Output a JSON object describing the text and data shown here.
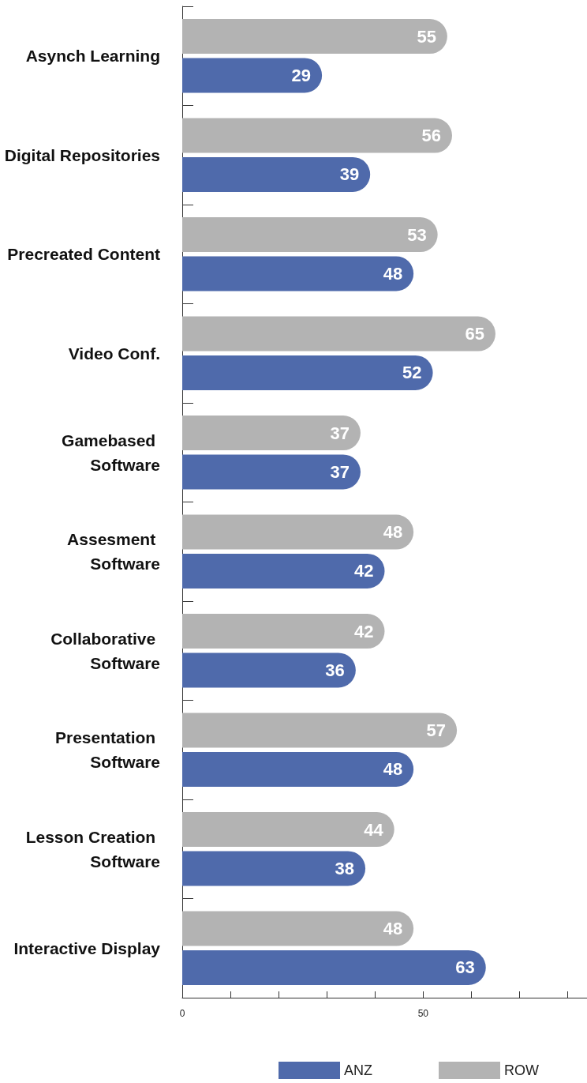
{
  "chart_data": {
    "type": "bar",
    "orientation": "horizontal",
    "categories": [
      "Asynch Learning",
      "Digital Repositories",
      "Precreated Content",
      "Video Conf.",
      "Gamebased Software",
      "Assesment Software",
      "Collaborative Software",
      "Presentation Software",
      "Lesson Creation Software",
      "Interactive Display"
    ],
    "series": [
      {
        "name": "ROW",
        "color": "#b3b3b3",
        "values": [
          55,
          56,
          53,
          65,
          37,
          48,
          42,
          57,
          44,
          48
        ]
      },
      {
        "name": "ANZ",
        "color": "#4f6aab",
        "values": [
          29,
          39,
          48,
          52,
          37,
          42,
          36,
          48,
          38,
          63
        ]
      }
    ],
    "xlim": [
      0,
      84
    ],
    "xticks": [
      0,
      {
        "value": 10,
        "label": null
      },
      {
        "value": 20,
        "label": null
      },
      {
        "value": 30,
        "label": null
      },
      {
        "value": 40,
        "label": null
      },
      50,
      {
        "value": 60,
        "label": null
      },
      {
        "value": 70,
        "label": null
      },
      {
        "value": 80,
        "label": null
      }
    ],
    "data_labels": true,
    "grid": false,
    "legend": "bottom right"
  }
}
